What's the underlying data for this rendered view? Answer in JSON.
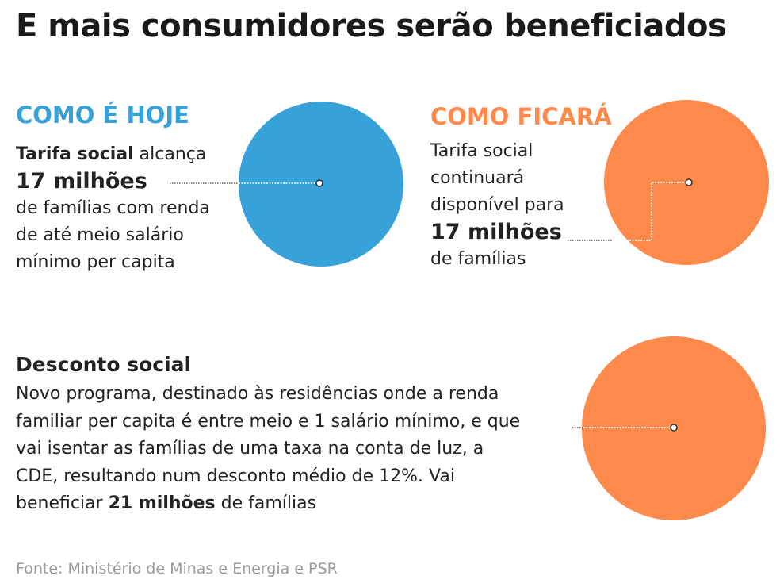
{
  "title": "E mais consumidores serão beneficiados",
  "colors": {
    "blue": "#37a2da",
    "orange": "#fd8a4b"
  },
  "hoje": {
    "heading": "COMO É HOJE",
    "line1_bold": "Tarifa social",
    "line1_rest": " alcança",
    "number": "17 milhões",
    "line3": "de famílias com renda",
    "line4": "de até meio salário",
    "line5": "mínimo per capita"
  },
  "ficara": {
    "heading": "COMO FICARÁ",
    "line1": "Tarifa social",
    "line2": "continuará",
    "line3": "disponível para",
    "number": "17 milhões",
    "line5": "de famílias"
  },
  "desconto": {
    "heading": "Desconto social",
    "line1": "Novo programa, destinado às residências onde a renda",
    "line2": "familiar per capita é entre meio e 1 salário mínimo, e que",
    "line3": "vai isentar as famílias de uma taxa na conta de luz, a",
    "line4": "CDE, resultando num desconto médio de 12%. Vai",
    "line5_start": "beneficiar ",
    "line5_bold": "21 milhões",
    "line5_end": " de famílias"
  },
  "source": "Fonte: Ministério de Minas e Energia e PSR"
}
